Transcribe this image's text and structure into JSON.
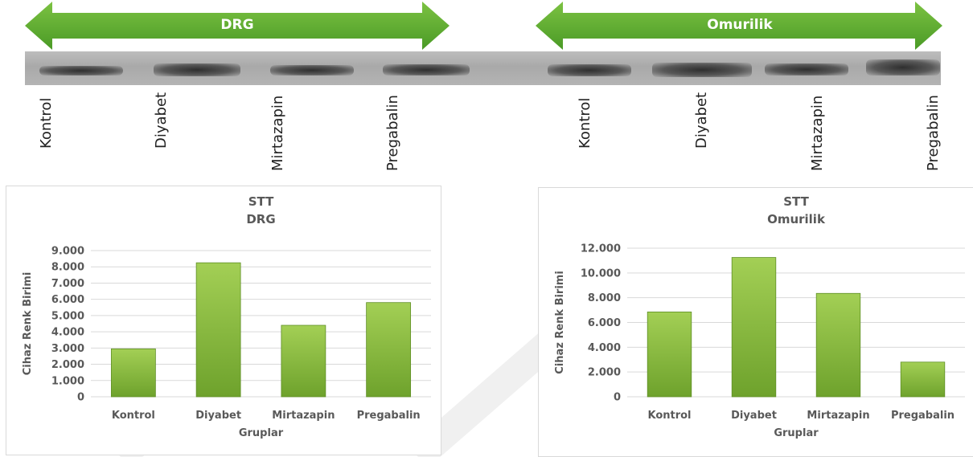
{
  "colors": {
    "arrow": "#5aa02c",
    "bar": "#8cbf3f",
    "grid": "#d9d9d9",
    "text": "#595959"
  },
  "blot": {
    "arrows": [
      {
        "label": "DRG"
      },
      {
        "label": "Omurilik"
      }
    ],
    "lanes": [
      "Kontrol",
      "Diyabet",
      "Mirtazapin",
      "Pregabalin",
      "Kontrol",
      "Diyabet",
      "Mirtazapin",
      "Pregabalin"
    ]
  },
  "chart_data": [
    {
      "type": "bar",
      "title": [
        "STT",
        "DRG"
      ],
      "categories": [
        "Kontrol",
        "Diyabet",
        "Mirtazapin",
        "Pregabalin"
      ],
      "values": [
        2950,
        8250,
        4400,
        5800
      ],
      "yticks": [
        "0",
        "1.000",
        "2.000",
        "3.000",
        "4.000",
        "5.000",
        "6.000",
        "7.000",
        "8.000",
        "9.000"
      ],
      "ylim": [
        0,
        9000
      ],
      "xlabel": "Gruplar",
      "ylabel": "Cihaz Renk Birimi",
      "grid": true
    },
    {
      "type": "bar",
      "title": [
        "STT",
        "Omurilik"
      ],
      "categories": [
        "Kontrol",
        "Diyabet",
        "Mirtazapin",
        "Pregabalin"
      ],
      "values": [
        6850,
        11250,
        8350,
        2800
      ],
      "yticks": [
        "0",
        "2.000",
        "4.000",
        "6.000",
        "8.000",
        "10.000",
        "12.000"
      ],
      "ylim": [
        0,
        12000
      ],
      "xlabel": "Gruplar",
      "ylabel": "Cihaz Renk Birimi",
      "grid": true
    }
  ]
}
